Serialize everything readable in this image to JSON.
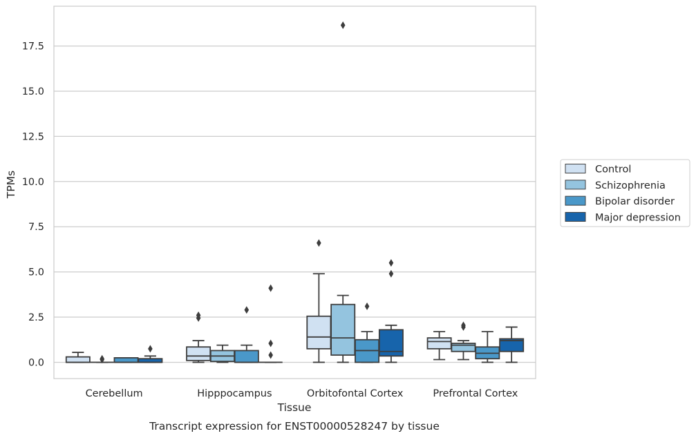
{
  "chart_data": {
    "type": "box",
    "title": "Transcript expression for ENST00000528247 by tissue",
    "xlabel": "Tissue",
    "ylabel": "TPMs",
    "ylim": [
      -0.9,
      19.7
    ],
    "yticks": [
      0.0,
      2.5,
      5.0,
      7.5,
      10.0,
      12.5,
      15.0,
      17.5
    ],
    "ytick_labels": [
      "0.0",
      "2.5",
      "5.0",
      "7.5",
      "10.0",
      "12.5",
      "15.0",
      "17.5"
    ],
    "grid": "horizontal",
    "legend_placement": "right",
    "categories": [
      "Cerebellum",
      "Hipppocampus",
      "Orbitofontal Cortex",
      "Prefrontal Cortex"
    ],
    "series": [
      {
        "name": "Control",
        "color": "#d0e1f2",
        "boxes": [
          {
            "whislo": 0.0,
            "q1": 0.0,
            "med": 0.0,
            "q3": 0.3,
            "whishi": 0.55,
            "fliers": []
          },
          {
            "whislo": 0.0,
            "q1": 0.1,
            "med": 0.35,
            "q3": 0.85,
            "whishi": 1.2,
            "fliers": [
              2.45,
              2.6
            ]
          },
          {
            "whislo": 0.0,
            "q1": 0.75,
            "med": 1.4,
            "q3": 2.55,
            "whishi": 4.9,
            "fliers": [
              6.6
            ]
          },
          {
            "whislo": 0.15,
            "q1": 0.75,
            "med": 1.15,
            "q3": 1.35,
            "whishi": 1.7,
            "fliers": []
          }
        ]
      },
      {
        "name": "Schizophrenia",
        "color": "#94c4df",
        "boxes": [
          {
            "whislo": 0.0,
            "q1": 0.0,
            "med": 0.0,
            "q3": 0.0,
            "whishi": 0.0,
            "fliers": [
              0.15,
              0.2
            ]
          },
          {
            "whislo": 0.0,
            "q1": 0.05,
            "med": 0.35,
            "q3": 0.65,
            "whishi": 0.95,
            "fliers": []
          },
          {
            "whislo": 0.0,
            "q1": 0.4,
            "med": 1.35,
            "q3": 3.2,
            "whishi": 3.7,
            "fliers": [
              18.65
            ]
          },
          {
            "whislo": 0.15,
            "q1": 0.6,
            "med": 0.95,
            "q3": 1.05,
            "whishi": 1.2,
            "fliers": [
              1.95,
              2.05
            ]
          }
        ]
      },
      {
        "name": "Bipolar disorder",
        "color": "#4a98c9",
        "boxes": [
          {
            "whislo": 0.0,
            "q1": 0.0,
            "med": 0.0,
            "q3": 0.25,
            "whishi": 0.25,
            "fliers": []
          },
          {
            "whislo": 0.0,
            "q1": 0.0,
            "med": 0.0,
            "q3": 0.65,
            "whishi": 0.95,
            "fliers": [
              2.9
            ]
          },
          {
            "whislo": 0.0,
            "q1": 0.0,
            "med": 0.65,
            "q3": 1.25,
            "whishi": 1.7,
            "fliers": [
              3.1
            ]
          },
          {
            "whislo": 0.0,
            "q1": 0.2,
            "med": 0.5,
            "q3": 0.85,
            "whishi": 1.7,
            "fliers": []
          }
        ]
      },
      {
        "name": "Major depression",
        "color": "#1764ab",
        "boxes": [
          {
            "whislo": 0.0,
            "q1": 0.0,
            "med": 0.0,
            "q3": 0.2,
            "whishi": 0.35,
            "fliers": [
              0.75
            ]
          },
          {
            "whislo": 0.0,
            "q1": 0.0,
            "med": 0.0,
            "q3": 0.0,
            "whishi": 0.0,
            "fliers": [
              0.4,
              1.05,
              4.1
            ]
          },
          {
            "whislo": 0.0,
            "q1": 0.35,
            "med": 0.6,
            "q3": 1.8,
            "whishi": 2.05,
            "fliers": [
              4.9,
              5.5
            ]
          },
          {
            "whislo": 0.0,
            "q1": 0.6,
            "med": 1.2,
            "q3": 1.3,
            "whishi": 1.95,
            "fliers": []
          }
        ]
      }
    ]
  }
}
